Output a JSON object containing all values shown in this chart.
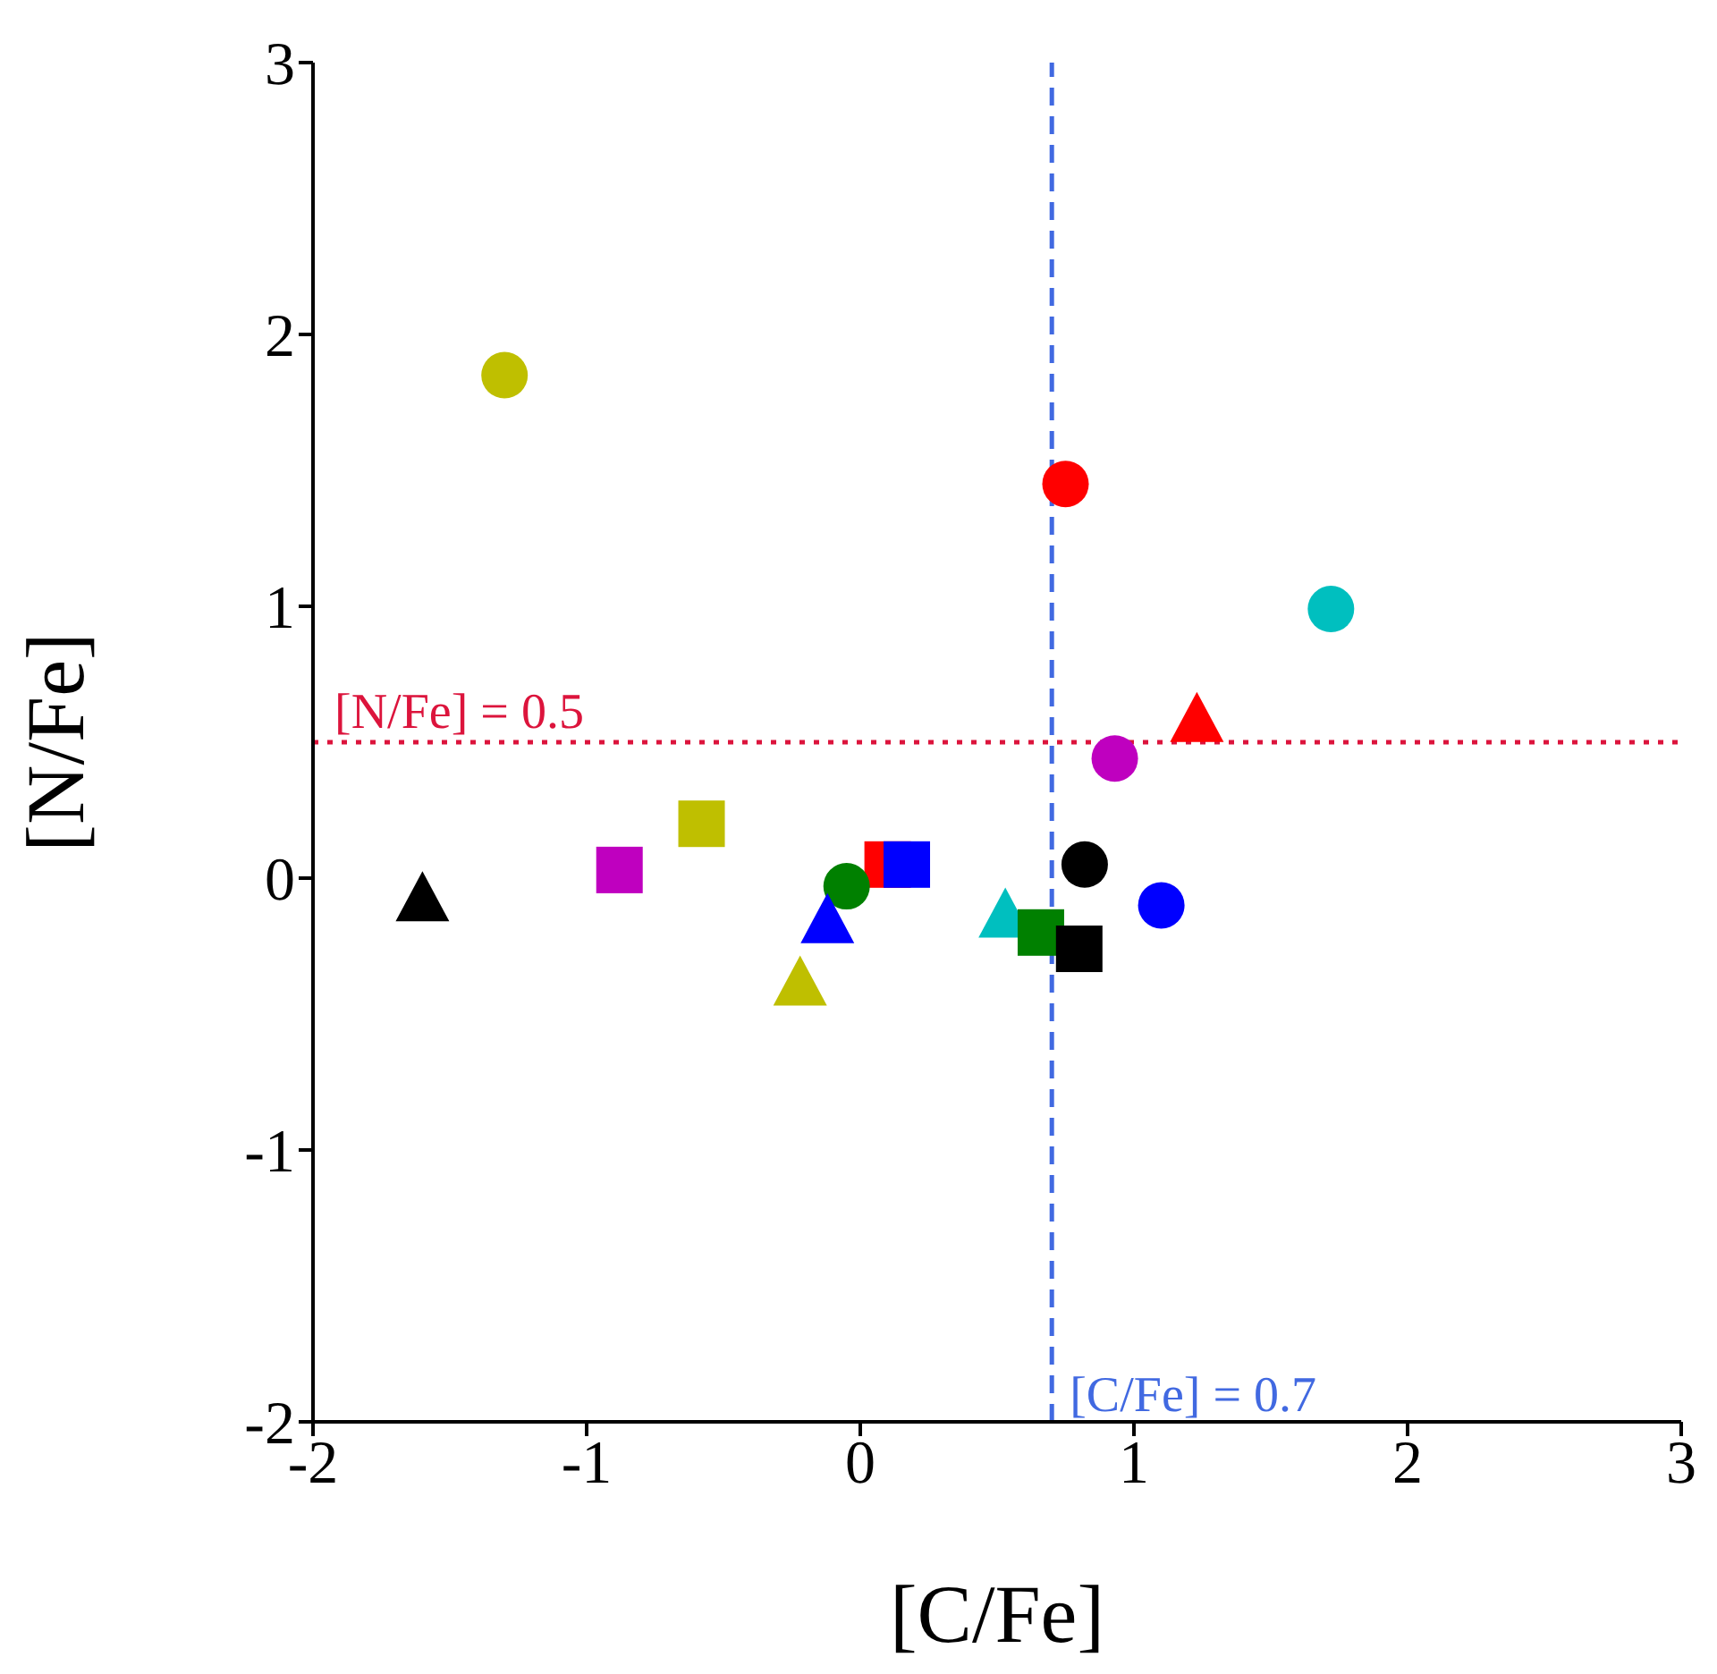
{
  "chart_data": {
    "type": "scatter",
    "xlabel": "[C/Fe]",
    "ylabel": "[N/Fe]",
    "xlim": [
      -2,
      3
    ],
    "xticks": [
      -2,
      -1,
      0,
      1,
      2,
      3
    ],
    "ylim": [
      -2,
      3
    ],
    "yticks": [
      -2,
      -1,
      0,
      1,
      2,
      3
    ],
    "grid": false,
    "legend": false,
    "series": [
      {
        "x": [
          -1.3
        ],
        "values": [
          1.85
        ],
        "color": "#bfbf00",
        "marker": "circle"
      },
      {
        "x": [
          0.75
        ],
        "values": [
          1.45
        ],
        "color": "#ff0000",
        "marker": "circle"
      },
      {
        "x": [
          1.72
        ],
        "values": [
          0.99
        ],
        "color": "#00bfbf",
        "marker": "circle"
      },
      {
        "x": [
          1.23
        ],
        "values": [
          0.58
        ],
        "color": "#ff0000",
        "marker": "triangle"
      },
      {
        "x": [
          0.93
        ],
        "values": [
          0.44
        ],
        "color": "#bf00bf",
        "marker": "circle"
      },
      {
        "x": [
          -0.58
        ],
        "values": [
          0.2
        ],
        "color": "#bfbf00",
        "marker": "square"
      },
      {
        "x": [
          -0.88
        ],
        "values": [
          0.03
        ],
        "color": "#bf00bf",
        "marker": "square"
      },
      {
        "x": [
          -1.6
        ],
        "values": [
          -0.08
        ],
        "color": "#000000",
        "marker": "triangle"
      },
      {
        "x": [
          0.1
        ],
        "values": [
          0.05
        ],
        "color": "#ff0000",
        "marker": "square"
      },
      {
        "x": [
          0.17
        ],
        "values": [
          0.05
        ],
        "color": "#0000ff",
        "marker": "square"
      },
      {
        "x": [
          -0.05
        ],
        "values": [
          -0.03
        ],
        "color": "#008000",
        "marker": "circle"
      },
      {
        "x": [
          -0.12
        ],
        "values": [
          -0.16
        ],
        "color": "#0000ff",
        "marker": "triangle"
      },
      {
        "x": [
          -0.22
        ],
        "values": [
          -0.39
        ],
        "color": "#bfbf00",
        "marker": "triangle"
      },
      {
        "x": [
          0.82
        ],
        "values": [
          0.05
        ],
        "color": "#000000",
        "marker": "circle"
      },
      {
        "x": [
          1.1
        ],
        "values": [
          -0.1
        ],
        "color": "#0000ff",
        "marker": "circle"
      },
      {
        "x": [
          0.53
        ],
        "values": [
          -0.14
        ],
        "color": "#00bfbf",
        "marker": "triangle"
      },
      {
        "x": [
          0.66
        ],
        "values": [
          -0.2
        ],
        "color": "#008000",
        "marker": "square"
      },
      {
        "x": [
          0.8
        ],
        "values": [
          -0.26
        ],
        "color": "#000000",
        "marker": "square"
      }
    ],
    "ref_lines": [
      {
        "axis": "x",
        "value": 0.7,
        "label": "[C/Fe] = 0.7",
        "color": "#4169e1",
        "line_style": "dashed"
      },
      {
        "axis": "y",
        "value": 0.5,
        "label": "[N/Fe] = 0.5",
        "color": "#dc143c",
        "line_style": "dotted"
      }
    ]
  }
}
